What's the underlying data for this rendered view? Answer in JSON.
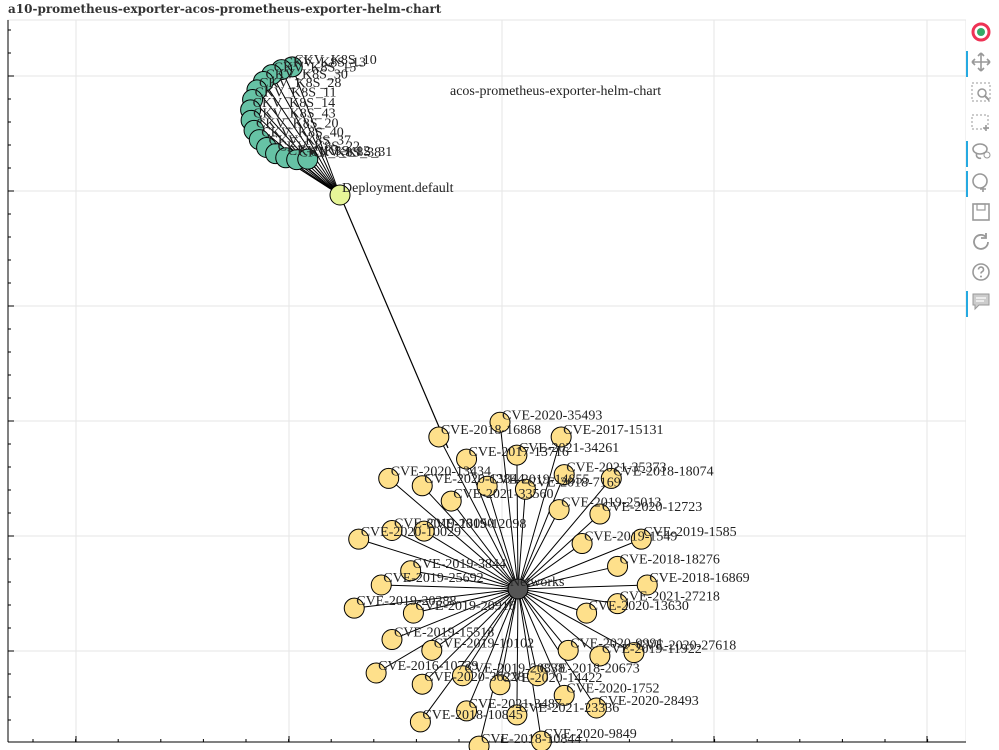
{
  "title": "a10-prometheus-exporter-acos-prometheus-exporter-helm-chart",
  "colors": {
    "check_node": "#66c2a5",
    "vuln_node": "#fee08b",
    "resource_node": "#e6f598",
    "chart_node": "#cccccc",
    "network_node": "#555555",
    "edge": "#000000",
    "grid": "#e5e5e5",
    "toolbar_active": "#26aae1"
  },
  "toolbar": [
    {
      "icon": "bokeh-logo-icon",
      "active": false
    },
    {
      "icon": "pan-icon",
      "active": true
    },
    {
      "icon": "box-zoom-icon",
      "active": false
    },
    {
      "icon": "box-select-icon",
      "active": false
    },
    {
      "icon": "lasso-select-icon",
      "active": true
    },
    {
      "icon": "wheel-zoom-icon",
      "active": true
    },
    {
      "icon": "save-icon",
      "active": false
    },
    {
      "icon": "reset-icon",
      "active": false
    },
    {
      "icon": "help-icon",
      "active": false
    },
    {
      "icon": "hover-icon",
      "active": true
    }
  ],
  "chart_data": {
    "type": "network",
    "grid": true,
    "legend": "none",
    "hubs": [
      {
        "label": "Deployment.default",
        "kind": "resource"
      },
      {
        "label": "a10-prometheus-exporter/acos-prometheus-exporter-helm-chart",
        "kind": "chart"
      },
      {
        "label": "Networks",
        "kind": "network"
      }
    ],
    "edges_hub": [
      [
        "Deployment.default",
        "a10-prometheus-exporter/acos-prometheus-exporter-helm-chart"
      ],
      [
        "Deployment.default",
        "Networks"
      ]
    ],
    "checks": [
      "CKV_K8S_10",
      "CKV_K8S_13",
      "CKV_K8S_15",
      "CKV_K8S_30",
      "CKV_K8S_28",
      "CKV_K8S_11",
      "CKV_K8S_14",
      "CKV_K8S_43",
      "CKV_K8S_20",
      "CKV_K8S_40",
      "CKV_K8S_37",
      "CKV_K8S_22",
      "CKV_K8S_12",
      "CKV_K8S_38",
      "CKV_K8S_31"
    ],
    "vulnerabilities": [
      "CVE-2018-16869",
      "CVE-2021-27218",
      "CVE-2020-13630",
      "CVE-2020-27618",
      "CVE-2019-11922",
      "CVE-2020-9991",
      "CVE-2020-28493",
      "CVE-2020-1752",
      "CVE-2018-20673",
      "CVE-2020-9849",
      "CVE-2021-23336",
      "CVE-2020-14422",
      "CVE-2018-10844",
      "CVE-2021-3487",
      "CVE-2019-20838",
      "CVE-2018-10845",
      "CVE-2020-36228",
      "CVE-2019-10102",
      "CVE-2016-10739",
      "CVE-2019-15518",
      "CVE-2019-20916",
      "CVE-2019-20388",
      "CVE-2019-25692",
      "CVE-2019-3844",
      "CVE-2020-10029",
      "CVE-2019-13050",
      "CVE-2019-12098",
      "CVE-2020-13434",
      "CVE-2020-13844",
      "CVE-2021-33560",
      "CVE-2018-16868",
      "CVE-2017-13716",
      "CVE-2019-14855",
      "CVE-2020-35493",
      "CVE-2021-34261",
      "CVE-2018-7169",
      "CVE-2017-15131",
      "CVE-2021-35373",
      "CVE-2019-25013",
      "CVE-2018-18074",
      "CVE-2020-12723",
      "CVE-2019-1549",
      "CVE-2019-1585",
      "CVE-2018-18276"
    ]
  }
}
